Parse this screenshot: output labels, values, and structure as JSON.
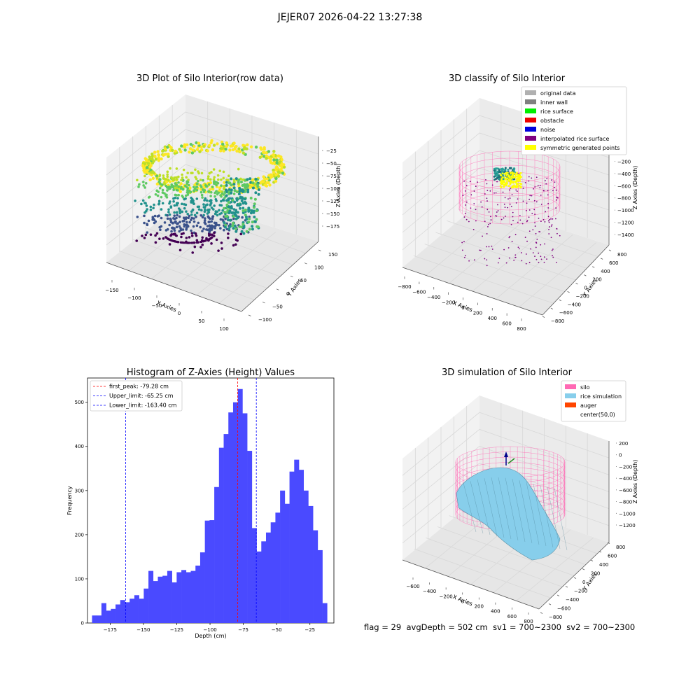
{
  "suptitle": "JEJER07 2026-04-22 13:27:38",
  "footer": {
    "flag": "flag = 29",
    "avg_depth": "avgDepth = 502 cm",
    "sv1": "sv1 = 700~2300",
    "sv2": "sv2 = 700~2300"
  },
  "panels": {
    "raw": {
      "title": "3D Plot of Silo Interior(row data)",
      "xlabel": "X Axies",
      "ylabel": "Y Axies",
      "zlabel": "Z Axies (Depth)",
      "xticks": [
        "−150",
        "−100",
        "−50",
        "0",
        "50",
        "100"
      ],
      "yticks": [
        "−100",
        "−50",
        "0",
        "50",
        "100",
        "150"
      ],
      "zticks": [
        "−25",
        "−50",
        "−75",
        "−100",
        "−125",
        "−150",
        "−175"
      ]
    },
    "classify": {
      "title": "3D classify of Silo Interior",
      "xlabel": "X Axies",
      "ylabel": "Y Axies",
      "zlabel": "Z Axies (Depth)",
      "xticks": [
        "−800",
        "−600",
        "−400",
        "−200",
        "0",
        "200",
        "400",
        "600",
        "800"
      ],
      "yticks": [
        "−800",
        "−600",
        "−400",
        "−200",
        "0",
        "200",
        "400",
        "600",
        "800"
      ],
      "zticks": [
        "0",
        "−200",
        "−400",
        "−600",
        "−800",
        "−1000",
        "−1200",
        "−1400"
      ],
      "legend": [
        {
          "label": "original data",
          "color": "#b0b0b0"
        },
        {
          "label": "inner wall",
          "color": "#808080"
        },
        {
          "label": "rice surface",
          "color": "#00ee00"
        },
        {
          "label": "obstacle",
          "color": "#ee0000"
        },
        {
          "label": "noise",
          "color": "#0000dd"
        },
        {
          "label": "interpolated rice surface",
          "color": "#800080"
        },
        {
          "label": "symmetric generated points",
          "color": "#ffff00"
        }
      ]
    },
    "simulation": {
      "title": "3D simulation of Silo Interior",
      "xlabel": "X Axies",
      "ylabel": "Y Axies",
      "zlabel": "Z Axies (Depth)",
      "xticks": [
        "−600",
        "−400",
        "−200",
        "0",
        "200",
        "400",
        "600",
        "800"
      ],
      "yticks": [
        "−800",
        "−600",
        "−400",
        "−200",
        "0",
        "200",
        "400",
        "600",
        "800"
      ],
      "zticks": [
        "200",
        "0",
        "−200",
        "−400",
        "−600",
        "−800",
        "−1000",
        "−1200"
      ],
      "legend": [
        {
          "label": "silo",
          "color": "#ff69b4"
        },
        {
          "label": "rice simulation",
          "color": "#87ceeb"
        },
        {
          "label": "auger",
          "color": "#ff4500"
        },
        {
          "label": "center(50,0)",
          "color": "#ffffff"
        }
      ]
    }
  },
  "chart_data": [
    {
      "type": "bar",
      "title": "Histogram of Z-Axies (Height) Values",
      "xlabel": "Depth (cm)",
      "ylabel": "Frequency",
      "xlim": [
        -192,
        -7
      ],
      "ylim": [
        0,
        555
      ],
      "bar_color": "#4a4aff",
      "bin_start": -188.6,
      "bin_width": 3.53,
      "values": [
        17,
        17,
        45,
        28,
        32,
        42,
        52,
        47,
        55,
        63,
        55,
        78,
        118,
        95,
        105,
        107,
        118,
        92,
        115,
        120,
        115,
        118,
        130,
        160,
        232,
        233,
        308,
        397,
        428,
        477,
        500,
        530,
        475,
        390,
        215,
        162,
        185,
        205,
        228,
        250,
        300,
        270,
        343,
        370,
        347,
        300,
        265,
        210,
        165,
        45
      ],
      "xticks": [
        -175,
        -150,
        -125,
        -100,
        -75,
        -50,
        -25
      ],
      "xtick_labels": [
        "−175",
        "−150",
        "−125",
        "−100",
        "−75",
        "−50",
        "−25"
      ],
      "yticks": [
        0,
        100,
        200,
        300,
        400,
        500
      ],
      "ytick_labels": [
        "0",
        "100",
        "200",
        "300",
        "400",
        "500"
      ],
      "vlines": [
        {
          "x": -79.28,
          "color": "#ff0000",
          "label": "first_peak: -79.28 cm"
        },
        {
          "x": -65.25,
          "color": "#0000ff",
          "label": "Upper_limit: -65.25 cm"
        },
        {
          "x": -163.4,
          "color": "#0000ff",
          "label": "Lower_limit: -163.40 cm"
        }
      ],
      "legend_position": "upper-left"
    }
  ]
}
